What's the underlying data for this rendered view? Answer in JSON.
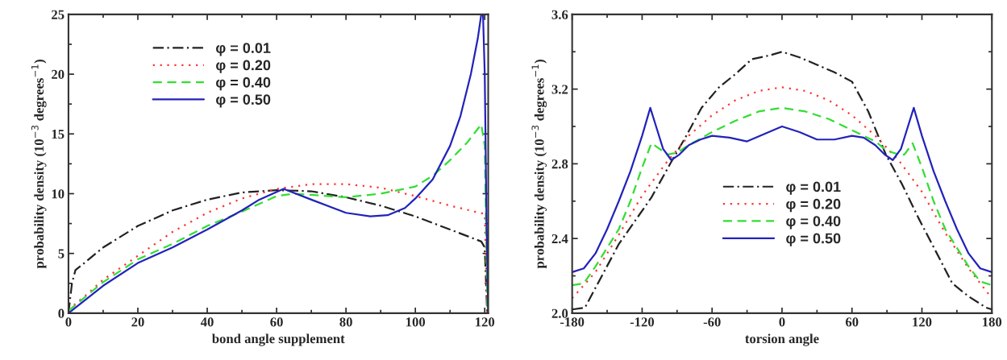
{
  "chart_data": [
    {
      "type": "line",
      "xlabel": "bond angle supplement",
      "ylabel": "probability density (10$^{−3}$ degrees$^{−1}$)",
      "xlim": [
        0,
        121
      ],
      "ylim": [
        0,
        25
      ],
      "xticks": [
        0,
        20,
        40,
        60,
        80,
        100,
        120
      ],
      "yticks": [
        0,
        5,
        10,
        15,
        20,
        25
      ],
      "grid": false,
      "legend": "top left",
      "series": [
        {
          "name": "φ = 0.01",
          "color": "#222222",
          "line_style": "dashdot",
          "x": [
            0,
            1,
            2,
            5,
            10,
            20,
            30,
            40,
            50,
            60,
            70,
            80,
            90,
            100,
            110,
            119,
            120,
            120.7
          ],
          "values": [
            0,
            2.5,
            3.6,
            4.3,
            5.5,
            7.3,
            8.6,
            9.5,
            10.1,
            10.3,
            10.2,
            9.7,
            9.0,
            8.1,
            7.0,
            6.0,
            5.5,
            0
          ]
        },
        {
          "name": "φ = 0.20",
          "color": "#ff3333",
          "line_style": "dotted",
          "x": [
            0,
            5,
            10,
            20,
            30,
            40,
            50,
            60,
            70,
            80,
            90,
            100,
            110,
            120,
            120.7
          ],
          "values": [
            0.3,
            1.5,
            2.8,
            4.8,
            6.8,
            8.4,
            9.6,
            10.4,
            10.8,
            10.8,
            10.5,
            9.8,
            9.0,
            8.3,
            0
          ]
        },
        {
          "name": "φ = 0.40",
          "color": "#33dd33",
          "line_style": "dashed",
          "x": [
            0,
            10,
            20,
            30,
            40,
            50,
            60,
            65,
            70,
            80,
            90,
            100,
            105,
            110,
            115,
            119,
            120,
            120.5,
            120.8
          ],
          "values": [
            0.2,
            2.6,
            4.5,
            5.8,
            7.3,
            8.5,
            9.8,
            10.0,
            9.9,
            9.7,
            10.0,
            10.6,
            11.5,
            12.8,
            14.3,
            15.8,
            14.0,
            5,
            0
          ]
        },
        {
          "name": "φ = 0.50",
          "color": "#2222bb",
          "line_style": "solid",
          "x": [
            0,
            10,
            20,
            30,
            40,
            50,
            55,
            62,
            70,
            80,
            87,
            92,
            97,
            100,
            105,
            110,
            113,
            116,
            118,
            119,
            119.5,
            120,
            120.5,
            121
          ],
          "values": [
            0,
            2.3,
            4.2,
            5.5,
            7.0,
            8.6,
            9.5,
            10.4,
            9.5,
            8.4,
            8.1,
            8.2,
            8.8,
            9.6,
            11.2,
            14.0,
            16.5,
            20,
            23,
            25,
            25,
            20,
            8,
            0
          ]
        }
      ]
    },
    {
      "type": "line",
      "xlabel": "torsion angle",
      "ylabel": "probability density (10$^{−3}$ degrees$^{−1}$)",
      "xlim": [
        -180,
        180
      ],
      "ylim": [
        2.0,
        3.6
      ],
      "xticks": [
        -180,
        -120,
        -60,
        0,
        60,
        120,
        180
      ],
      "yticks": [
        {
          "value": 2.0,
          "label": "2.0"
        },
        2.4,
        2.8,
        3.2,
        3.6
      ],
      "grid": false,
      "legend": "bottom",
      "series": [
        {
          "name": "φ = 0.01",
          "color": "#222222",
          "line_style": "dashdot",
          "x": [
            -180,
            -169,
            -140,
            -112,
            -95,
            -83,
            -69,
            -54,
            -40,
            -26,
            -11,
            0,
            15,
            30,
            45,
            60,
            74,
            89,
            103,
            117,
            132,
            146,
            160,
            175,
            180
          ],
          "values": [
            2.02,
            2.03,
            2.37,
            2.62,
            2.81,
            2.94,
            3.1,
            3.21,
            3.28,
            3.36,
            3.38,
            3.4,
            3.37,
            3.33,
            3.29,
            3.24,
            3.08,
            2.85,
            2.69,
            2.51,
            2.33,
            2.16,
            2.09,
            2.03,
            2.02
          ]
        },
        {
          "name": "φ = 0.20",
          "color": "#ff3333",
          "line_style": "dotted",
          "x": [
            -180,
            -160,
            -140,
            -120,
            -100,
            -80,
            -60,
            -40,
            -20,
            0,
            20,
            40,
            60,
            80,
            100,
            120,
            140,
            160,
            180
          ],
          "values": [
            2.08,
            2.22,
            2.42,
            2.63,
            2.8,
            2.95,
            3.06,
            3.14,
            3.19,
            3.21,
            3.19,
            3.14,
            3.06,
            2.95,
            2.82,
            2.65,
            2.43,
            2.24,
            2.08
          ]
        },
        {
          "name": "φ = 0.40",
          "color": "#33dd33",
          "line_style": "dashed",
          "x": [
            -180,
            -170,
            -160,
            -140,
            -130,
            -120,
            -112,
            -105,
            -98,
            -90,
            -80,
            -60,
            -40,
            -20,
            0,
            20,
            40,
            60,
            80,
            90,
            100,
            105,
            112,
            120,
            130,
            140,
            160,
            170,
            180
          ],
          "values": [
            2.15,
            2.16,
            2.25,
            2.45,
            2.6,
            2.78,
            2.91,
            2.88,
            2.85,
            2.86,
            2.9,
            2.97,
            3.03,
            3.08,
            3.1,
            3.08,
            3.04,
            2.98,
            2.92,
            2.87,
            2.85,
            2.85,
            2.91,
            2.78,
            2.6,
            2.45,
            2.25,
            2.17,
            2.15
          ]
        },
        {
          "name": "φ = 0.50",
          "color": "#2222bb",
          "line_style": "solid",
          "x": [
            -180,
            -170,
            -160,
            -150,
            -140,
            -130,
            -120,
            -113,
            -108,
            -102,
            -95,
            -88,
            -80,
            -70,
            -60,
            -45,
            -30,
            -15,
            0,
            15,
            30,
            45,
            60,
            70,
            80,
            88,
            95,
            102,
            108,
            113,
            120,
            130,
            140,
            150,
            160,
            170,
            180
          ],
          "values": [
            2.22,
            2.24,
            2.32,
            2.45,
            2.6,
            2.76,
            2.95,
            3.1,
            3.0,
            2.88,
            2.82,
            2.85,
            2.9,
            2.93,
            2.95,
            2.94,
            2.92,
            2.96,
            3.0,
            2.97,
            2.93,
            2.93,
            2.95,
            2.94,
            2.9,
            2.85,
            2.82,
            2.88,
            3.0,
            3.1,
            2.95,
            2.76,
            2.6,
            2.45,
            2.32,
            2.24,
            2.22
          ]
        }
      ]
    }
  ]
}
